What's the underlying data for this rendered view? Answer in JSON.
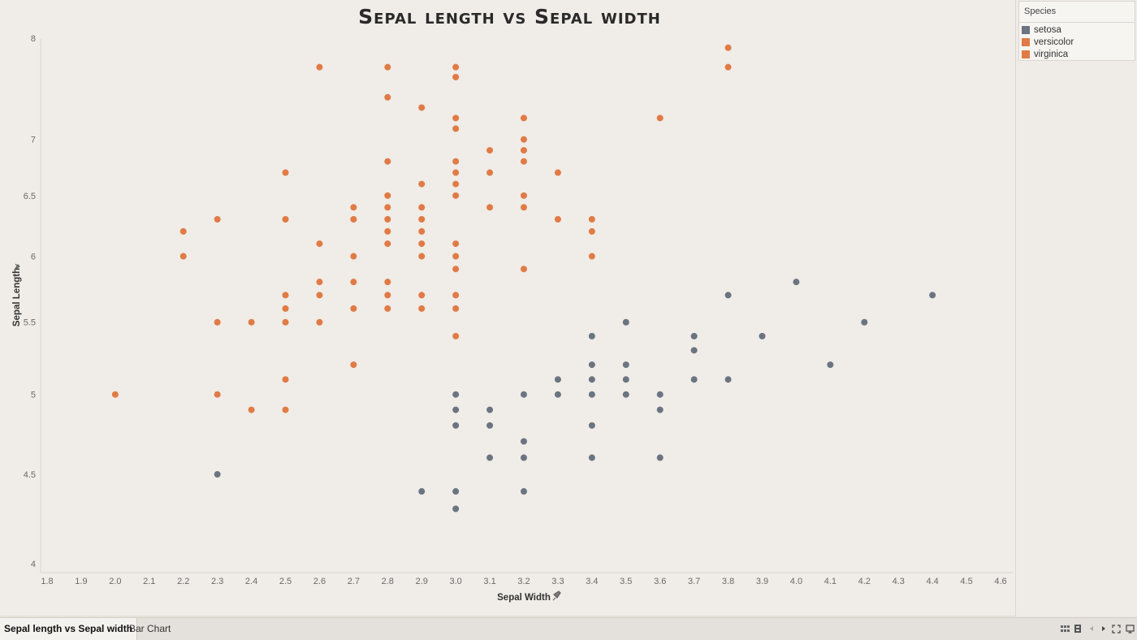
{
  "chart_data": {
    "type": "scatter",
    "title": "Sepal length vs Sepal width",
    "xlabel": "Sepal Width",
    "ylabel": "Sepal Length",
    "xlim": [
      1.8,
      4.6
    ],
    "ylim": [
      4,
      8
    ],
    "y_scale": "log",
    "x_ticks": [
      "1.8",
      "1.9",
      "2.0",
      "2.1",
      "2.2",
      "2.3",
      "2.4",
      "2.5",
      "2.6",
      "2.7",
      "2.8",
      "2.9",
      "3.0",
      "3.1",
      "3.2",
      "3.3",
      "3.4",
      "3.5",
      "3.6",
      "3.7",
      "3.8",
      "3.9",
      "4.0",
      "4.1",
      "4.2",
      "4.3",
      "4.4",
      "4.5",
      "4.6"
    ],
    "y_ticks": [
      "4",
      "4.5",
      "5",
      "5.5",
      "6",
      "6.5",
      "7",
      "8"
    ],
    "grid": false,
    "legend_position": "right",
    "series": [
      {
        "name": "setosa",
        "color": "#6b7480",
        "points": [
          [
            2.3,
            4.5
          ],
          [
            2.9,
            4.4
          ],
          [
            3.0,
            4.4
          ],
          [
            3.0,
            4.3
          ],
          [
            3.0,
            4.8
          ],
          [
            3.0,
            4.9
          ],
          [
            3.0,
            5.0
          ],
          [
            3.1,
            4.9
          ],
          [
            3.1,
            4.8
          ],
          [
            3.1,
            4.6
          ],
          [
            3.2,
            4.7
          ],
          [
            3.2,
            4.6
          ],
          [
            3.2,
            4.4
          ],
          [
            3.2,
            5.0
          ],
          [
            3.3,
            5.1
          ],
          [
            3.3,
            5.0
          ],
          [
            3.4,
            5.4
          ],
          [
            3.4,
            5.2
          ],
          [
            3.4,
            5.1
          ],
          [
            3.4,
            5.0
          ],
          [
            3.4,
            4.8
          ],
          [
            3.4,
            4.6
          ],
          [
            3.5,
            5.5
          ],
          [
            3.5,
            5.2
          ],
          [
            3.5,
            5.1
          ],
          [
            3.5,
            5.0
          ],
          [
            3.6,
            5.0
          ],
          [
            3.6,
            4.9
          ],
          [
            3.6,
            4.6
          ],
          [
            3.7,
            5.4
          ],
          [
            3.7,
            5.3
          ],
          [
            3.7,
            5.1
          ],
          [
            3.8,
            5.7
          ],
          [
            3.8,
            5.1
          ],
          [
            3.9,
            5.4
          ],
          [
            4.0,
            5.8
          ],
          [
            4.1,
            5.2
          ],
          [
            4.2,
            5.5
          ],
          [
            4.4,
            5.7
          ]
        ]
      },
      {
        "name": "versicolor",
        "color": "#e07b45",
        "points": [
          [
            2.0,
            5.0
          ],
          [
            2.2,
            6.2
          ],
          [
            2.2,
            6.0
          ],
          [
            2.3,
            6.3
          ],
          [
            2.3,
            5.5
          ],
          [
            2.3,
            5.0
          ],
          [
            2.4,
            5.5
          ],
          [
            2.4,
            4.9
          ],
          [
            2.5,
            6.7
          ],
          [
            2.5,
            6.3
          ],
          [
            2.5,
            5.7
          ],
          [
            2.5,
            5.6
          ],
          [
            2.5,
            5.5
          ],
          [
            2.5,
            5.1
          ],
          [
            2.5,
            4.9
          ],
          [
            2.6,
            6.1
          ],
          [
            2.6,
            5.8
          ],
          [
            2.6,
            5.7
          ],
          [
            2.6,
            5.5
          ],
          [
            2.7,
            6.4
          ],
          [
            2.7,
            6.3
          ],
          [
            2.7,
            6.0
          ],
          [
            2.7,
            5.8
          ],
          [
            2.7,
            5.6
          ],
          [
            2.7,
            5.2
          ],
          [
            2.8,
            6.8
          ],
          [
            2.8,
            6.5
          ],
          [
            2.8,
            6.4
          ],
          [
            2.8,
            6.3
          ],
          [
            2.8,
            6.2
          ],
          [
            2.8,
            6.1
          ],
          [
            2.8,
            5.8
          ],
          [
            2.8,
            5.7
          ],
          [
            2.8,
            5.6
          ],
          [
            2.9,
            6.6
          ],
          [
            2.9,
            6.4
          ],
          [
            2.9,
            6.3
          ],
          [
            2.9,
            6.2
          ],
          [
            2.9,
            6.1
          ],
          [
            2.9,
            6.0
          ],
          [
            2.9,
            5.7
          ],
          [
            2.9,
            5.6
          ],
          [
            3.0,
            6.8
          ],
          [
            3.0,
            6.7
          ],
          [
            3.0,
            6.6
          ],
          [
            3.0,
            6.5
          ],
          [
            3.0,
            6.1
          ],
          [
            3.0,
            6.0
          ],
          [
            3.0,
            5.9
          ],
          [
            3.0,
            5.7
          ],
          [
            3.0,
            5.6
          ],
          [
            3.0,
            5.4
          ],
          [
            3.1,
            6.9
          ],
          [
            3.1,
            6.7
          ],
          [
            3.1,
            6.4
          ],
          [
            3.2,
            7.0
          ],
          [
            3.2,
            6.9
          ],
          [
            3.2,
            6.8
          ],
          [
            3.2,
            6.5
          ],
          [
            3.2,
            6.4
          ],
          [
            3.2,
            5.9
          ],
          [
            3.3,
            6.7
          ],
          [
            3.3,
            6.3
          ],
          [
            3.4,
            6.3
          ],
          [
            3.4,
            6.2
          ],
          [
            3.4,
            6.0
          ]
        ]
      },
      {
        "name": "virginica",
        "color": "#e07b45",
        "points": [
          [
            2.6,
            7.7
          ],
          [
            2.8,
            7.7
          ],
          [
            2.8,
            7.4
          ],
          [
            2.9,
            7.3
          ],
          [
            3.0,
            7.7
          ],
          [
            3.0,
            7.6
          ],
          [
            3.0,
            7.2
          ],
          [
            3.0,
            7.1
          ],
          [
            3.2,
            7.2
          ],
          [
            3.6,
            7.2
          ],
          [
            3.8,
            7.9
          ],
          [
            3.8,
            7.7
          ]
        ]
      }
    ]
  },
  "legend": {
    "title": "Species",
    "items": [
      {
        "label": "setosa",
        "color": "#6b7480"
      },
      {
        "label": "versicolor",
        "color": "#e07b45"
      },
      {
        "label": "virginica",
        "color": "#e07b45"
      }
    ]
  },
  "tabs": {
    "active": "Sepal length vs Sepal width",
    "second": "Bar Chart"
  },
  "icons": [
    "sheet-sorter-icon",
    "filmstrip-icon",
    "prev-icon",
    "next-icon",
    "fullscreen-icon",
    "present-icon"
  ]
}
